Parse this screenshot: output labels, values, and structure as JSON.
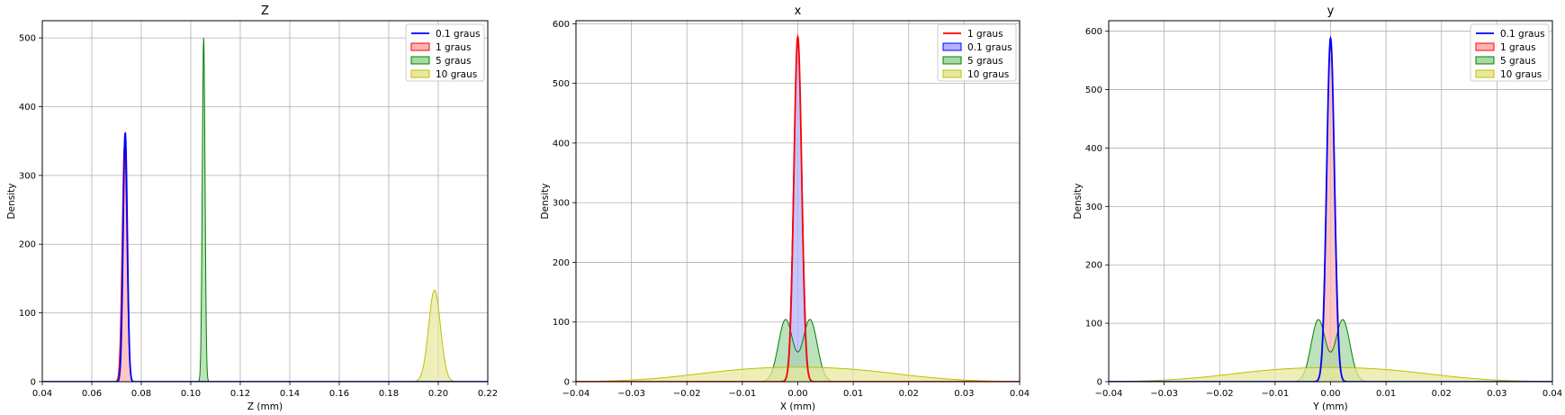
{
  "chart_data": [
    {
      "type": "area",
      "title": "Z",
      "xlabel": "Z (mm)",
      "ylabel": "Density",
      "xlim": [
        0.04,
        0.22
      ],
      "ylim": [
        0,
        525
      ],
      "xticks": [
        0.04,
        0.06,
        0.08,
        0.1,
        0.12,
        0.14,
        0.16,
        0.18,
        0.2,
        0.22
      ],
      "xtick_labels": [
        "0.04",
        "0.06",
        "0.08",
        "0.10",
        "0.12",
        "0.14",
        "0.16",
        "0.18",
        "0.20",
        "0.22"
      ],
      "yticks": [
        0,
        100,
        200,
        300,
        400,
        500
      ],
      "ytick_labels": [
        "0",
        "100",
        "200",
        "300",
        "400",
        "500"
      ],
      "grid": true,
      "legend_position": "top-right",
      "series": [
        {
          "name": "0.1 graus",
          "style": "line",
          "color": "#0000ff",
          "peaks": [
            {
              "center": 0.0735,
              "width": 0.00085,
              "height": 362
            }
          ]
        },
        {
          "name": "1 graus",
          "style": "fill",
          "color": "#ff0000",
          "fill": "#ffb3b3",
          "peaks": [
            {
              "center": 0.0732,
              "width": 0.00095,
              "height": 345
            }
          ]
        },
        {
          "name": "5 graus",
          "style": "fill",
          "color": "#008000",
          "fill": "#a6d9a6",
          "peaks": [
            {
              "center": 0.1052,
              "width": 0.00055,
              "height": 500
            }
          ]
        },
        {
          "name": "10 graus",
          "style": "fill",
          "color": "#bfbf00",
          "fill": "#e8e8a0",
          "peaks": [
            {
              "center": 0.1985,
              "width": 0.0024,
              "height": 133
            }
          ]
        }
      ]
    },
    {
      "type": "area",
      "title": "x",
      "xlabel": "X (mm)",
      "ylabel": "Density",
      "xlim": [
        -0.04,
        0.04
      ],
      "ylim": [
        0,
        605
      ],
      "xticks": [
        -0.04,
        -0.03,
        -0.02,
        -0.01,
        0.0,
        0.01,
        0.02,
        0.03,
        0.04
      ],
      "xtick_labels": [
        "−0.04",
        "−0.03",
        "−0.02",
        "−0.01",
        "0.00",
        "0.01",
        "0.02",
        "0.03",
        "0.04"
      ],
      "yticks": [
        0,
        100,
        200,
        300,
        400,
        500,
        600
      ],
      "ytick_labels": [
        "0",
        "100",
        "200",
        "300",
        "400",
        "500",
        "600"
      ],
      "grid": true,
      "legend_position": "top-right",
      "series": [
        {
          "name": "1 graus",
          "style": "line",
          "color": "#ff0000",
          "peaks": [
            {
              "center": 0.0,
              "width": 0.0007,
              "height": 578
            }
          ]
        },
        {
          "name": "0.1 graus",
          "style": "fill",
          "color": "#0000ff",
          "fill": "#b3b3ff",
          "peaks": [
            {
              "center": 0.0,
              "width": 0.00075,
              "height": 570
            }
          ]
        },
        {
          "name": "5 graus",
          "style": "fill",
          "color": "#008000",
          "fill": "#a6d9a6",
          "peaks": [
            {
              "center": -0.0022,
              "width": 0.0013,
              "height": 104
            },
            {
              "center": 0.0022,
              "width": 0.0013,
              "height": 104
            }
          ]
        },
        {
          "name": "10 graus",
          "style": "fill",
          "color": "#bfbf00",
          "fill": "#e8e8a0",
          "peaks": [
            {
              "center": -0.009,
              "width": 0.011,
              "height": 17
            },
            {
              "center": 0.009,
              "width": 0.011,
              "height": 17
            }
          ]
        }
      ]
    },
    {
      "type": "area",
      "title": "y",
      "xlabel": "Y (mm)",
      "ylabel": "Density",
      "xlim": [
        -0.04,
        0.04
      ],
      "ylim": [
        0,
        618
      ],
      "xticks": [
        -0.04,
        -0.03,
        -0.02,
        -0.01,
        0.0,
        0.01,
        0.02,
        0.03,
        0.04
      ],
      "xtick_labels": [
        "−0.04",
        "−0.03",
        "−0.02",
        "−0.01",
        "0.00",
        "0.01",
        "0.02",
        "0.03",
        "0.04"
      ],
      "yticks": [
        0,
        100,
        200,
        300,
        400,
        500,
        600
      ],
      "ytick_labels": [
        "0",
        "100",
        "200",
        "300",
        "400",
        "500",
        "600"
      ],
      "grid": true,
      "legend_position": "top-right",
      "series": [
        {
          "name": "0.1 graus",
          "style": "line",
          "color": "#0000ff",
          "peaks": [
            {
              "center": 0.0,
              "width": 0.0007,
              "height": 588
            }
          ]
        },
        {
          "name": "1 graus",
          "style": "fill",
          "color": "#ff0000",
          "fill": "#ffb3b3",
          "peaks": [
            {
              "center": 0.0,
              "width": 0.00075,
              "height": 575
            }
          ]
        },
        {
          "name": "5 graus",
          "style": "fill",
          "color": "#008000",
          "fill": "#a6d9a6",
          "peaks": [
            {
              "center": -0.0022,
              "width": 0.0013,
              "height": 106
            },
            {
              "center": 0.0022,
              "width": 0.0013,
              "height": 106
            }
          ]
        },
        {
          "name": "10 graus",
          "style": "fill",
          "color": "#bfbf00",
          "fill": "#e8e8a0",
          "peaks": [
            {
              "center": -0.009,
              "width": 0.011,
              "height": 17
            },
            {
              "center": 0.009,
              "width": 0.011,
              "height": 17
            }
          ]
        }
      ]
    }
  ]
}
